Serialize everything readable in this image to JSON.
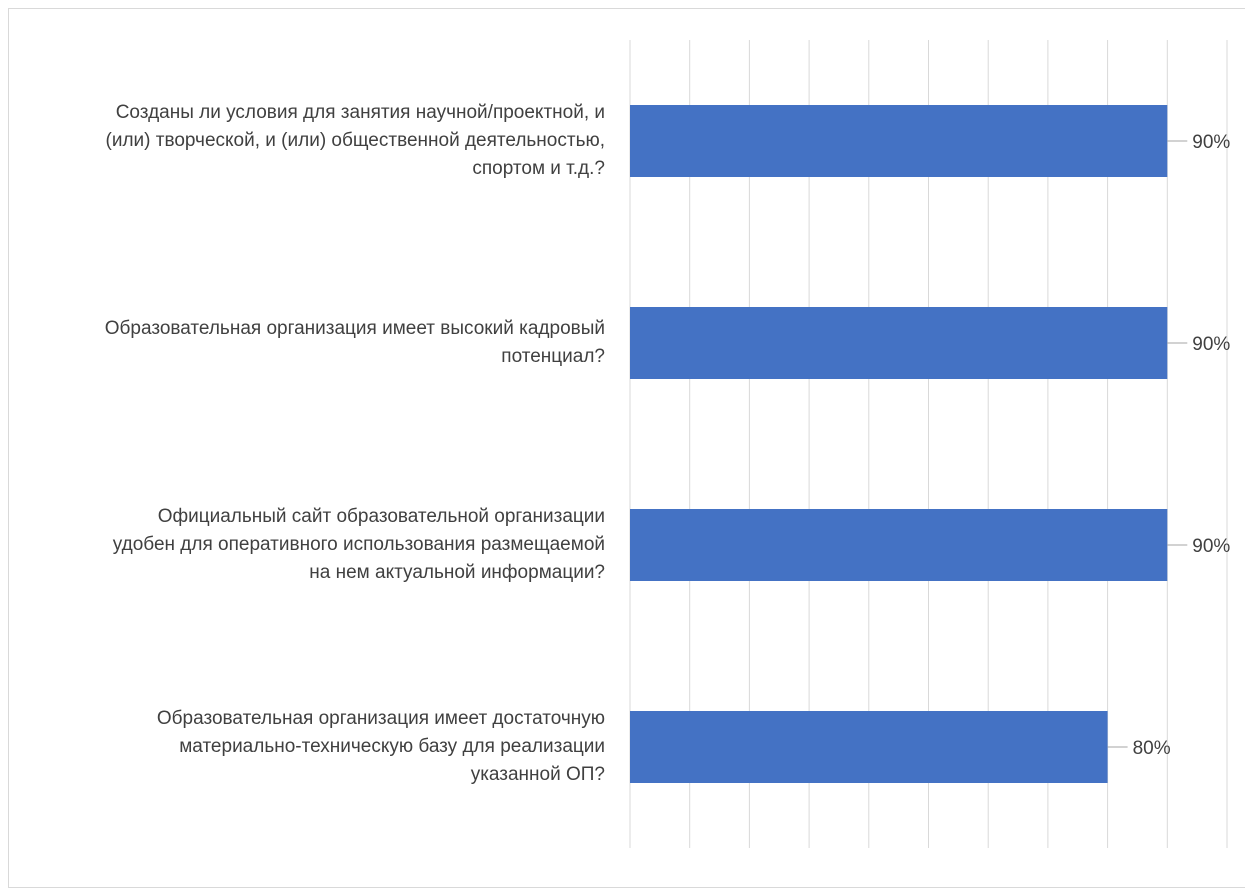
{
  "chart_data": {
    "type": "bar",
    "orientation": "horizontal",
    "categories": [
      "Созданы ли условия для занятия научной/проектной, и (или) творческой, и (или) общественной деятельностью, спортом и т.д.?",
      "Образовательная организация имеет высокий кадровый потенциал?",
      "Официальный сайт образовательной организации удобен для оперативного использования размещаемой на нем актуальной информации?",
      "Образовательная организация имеет достаточную материально-техническую базу для реализации указанной ОП?"
    ],
    "category_lines": [
      [
        "Созданы ли условия для занятия научной/проектной, и",
        "(или) творческой, и (или) общественной деятельностью,",
        "спортом и т.д.?"
      ],
      [
        "Образовательная организация имеет высокий кадровый",
        "потенциал?"
      ],
      [
        "Официальный сайт образовательной организации",
        "удобен для оперативного использования размещаемой",
        "на нем актуальной информации?"
      ],
      [
        "Образовательная организация имеет достаточную",
        "материально-техническую базу для реализации",
        "указанной ОП?"
      ]
    ],
    "values": [
      0.9,
      0.9,
      0.9,
      0.8
    ],
    "data_labels": [
      "90%",
      "90%",
      "90%",
      "80%"
    ],
    "xlim": [
      0,
      1
    ],
    "grid": true,
    "colors": {
      "bar": "#4472C4",
      "grid": "#d9d9d9",
      "text": "#404040",
      "leader": "#a6a6a6"
    }
  }
}
